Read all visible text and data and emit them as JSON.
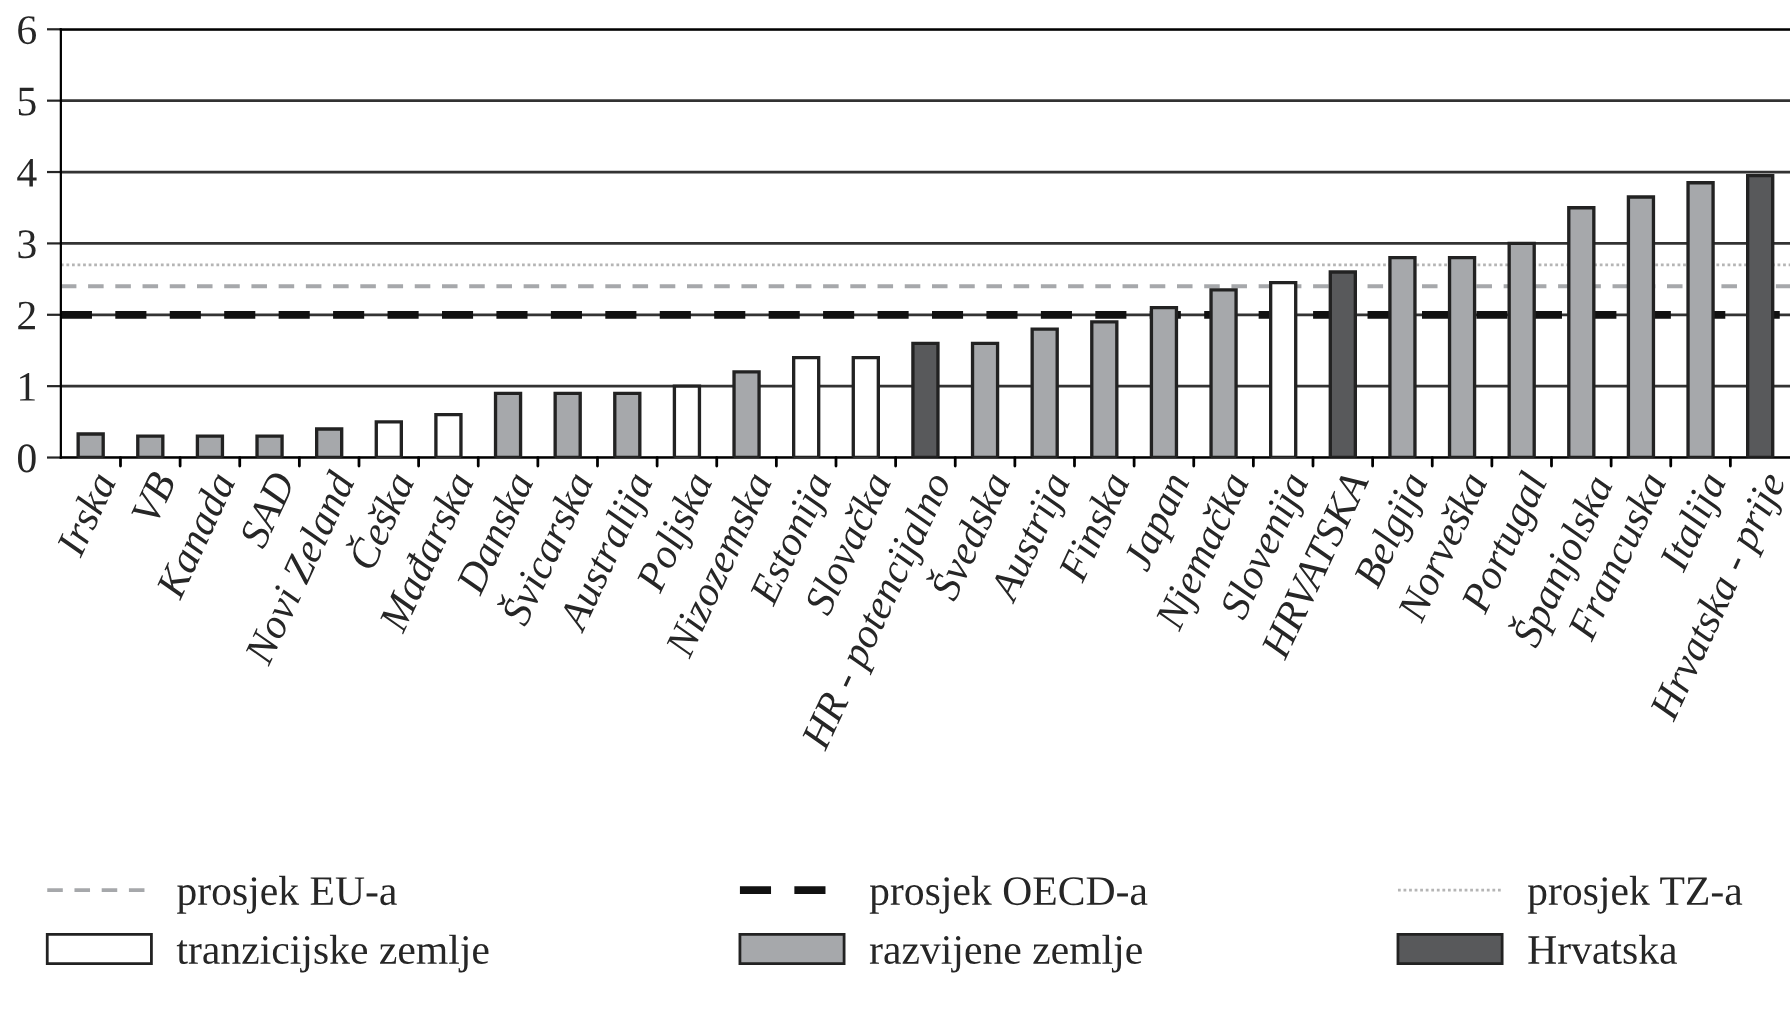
{
  "chart_data": {
    "type": "bar",
    "categories": [
      "Irska",
      "VB",
      "Kanada",
      "SAD",
      "Novi Zeland",
      "Češka",
      "Mađarska",
      "Danska",
      "Švicarska",
      "Australija",
      "Poljska",
      "Nizozemska",
      "Estonija",
      "Slovačka",
      "HR - potencijalno",
      "Švedska",
      "Austrija",
      "Finska",
      "Japan",
      "Njemačka",
      "Slovenija",
      "HRVATSKA",
      "Belgija",
      "Norveška",
      "Portugal",
      "Španjolska",
      "Francuska",
      "Italija",
      "Hrvatska - prije"
    ],
    "series": [
      {
        "name": "tranzicijske zemlje",
        "color": "#ffffff",
        "values": [
          null,
          null,
          null,
          null,
          null,
          0.5,
          0.6,
          null,
          null,
          null,
          1.0,
          null,
          1.4,
          1.4,
          null,
          null,
          null,
          null,
          null,
          null,
          2.45,
          null,
          null,
          null,
          null,
          null,
          null,
          null,
          null
        ]
      },
      {
        "name": "razvijene zemlje",
        "color": "#a6a8ab",
        "values": [
          0.33,
          0.3,
          0.3,
          0.3,
          0.4,
          null,
          null,
          0.9,
          0.9,
          0.9,
          null,
          1.2,
          null,
          null,
          null,
          1.6,
          1.8,
          1.9,
          2.1,
          2.35,
          null,
          null,
          2.8,
          2.8,
          3.0,
          3.5,
          3.65,
          3.85,
          null
        ]
      },
      {
        "name": "Hrvatska",
        "color": "#58595b",
        "values": [
          null,
          null,
          null,
          null,
          null,
          null,
          null,
          null,
          null,
          null,
          null,
          null,
          null,
          null,
          1.6,
          null,
          null,
          null,
          null,
          null,
          null,
          2.6,
          null,
          null,
          null,
          null,
          null,
          null,
          3.95
        ]
      }
    ],
    "ref_lines": [
      {
        "axis": "y",
        "value": 2.4,
        "label": "prosjek EU-a",
        "color": "#a6a8ab",
        "line_style": "dashed"
      },
      {
        "axis": "y",
        "value": 2.0,
        "label": "prosjek OECD-a",
        "color": "#111111",
        "line_style": "dashed"
      },
      {
        "axis": "y",
        "value": 2.7,
        "label": "prosjek TZ-a",
        "color": "#b5b5b5",
        "line_style": "dotted"
      }
    ],
    "ylim": [
      0,
      6
    ],
    "yticks": [
      0,
      1,
      2,
      3,
      4,
      5,
      6
    ],
    "grid": "y",
    "legend": "bottom"
  }
}
